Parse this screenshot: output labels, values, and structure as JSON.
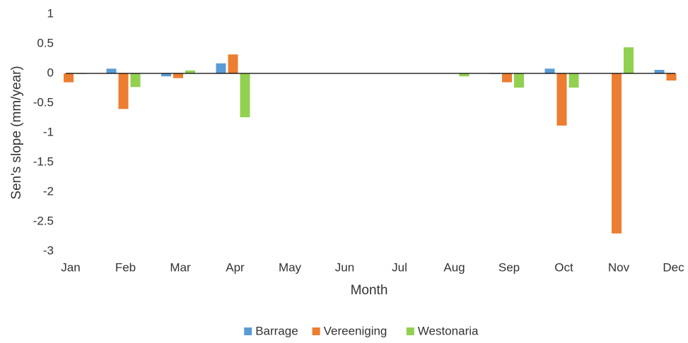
{
  "chart_data": {
    "type": "bar",
    "x_label": "Month",
    "y_label": "Sen's slope (mm/year)",
    "categories": [
      "Jan",
      "Feb",
      "Mar",
      "Apr",
      "May",
      "Jun",
      "Jul",
      "Aug",
      "Sep",
      "Oct",
      "Nov",
      "Dec"
    ],
    "series": [
      {
        "name": "Barrage",
        "color": "#5b9bd5",
        "values": [
          0,
          0.08,
          -0.05,
          0.17,
          0,
          0,
          0,
          0,
          -0.01,
          0.08,
          0,
          0.06
        ]
      },
      {
        "name": "Vereeniging",
        "color": "#ed7d31",
        "values": [
          -0.15,
          -0.6,
          -0.08,
          0.32,
          0,
          0,
          0,
          0,
          -0.15,
          -0.88,
          -2.7,
          -0.12
        ]
      },
      {
        "name": "Westonaria",
        "color": "#92d050",
        "values": [
          -0.01,
          -0.23,
          0.05,
          -0.74,
          0,
          0,
          0,
          -0.05,
          -0.24,
          -0.24,
          0.44,
          0
        ]
      }
    ],
    "ylim": [
      -3,
      1
    ],
    "yticks": [
      1,
      0.5,
      0,
      -0.5,
      -1,
      -1.5,
      -2,
      -2.5,
      -3
    ],
    "grid": false,
    "legend": "bottom"
  }
}
